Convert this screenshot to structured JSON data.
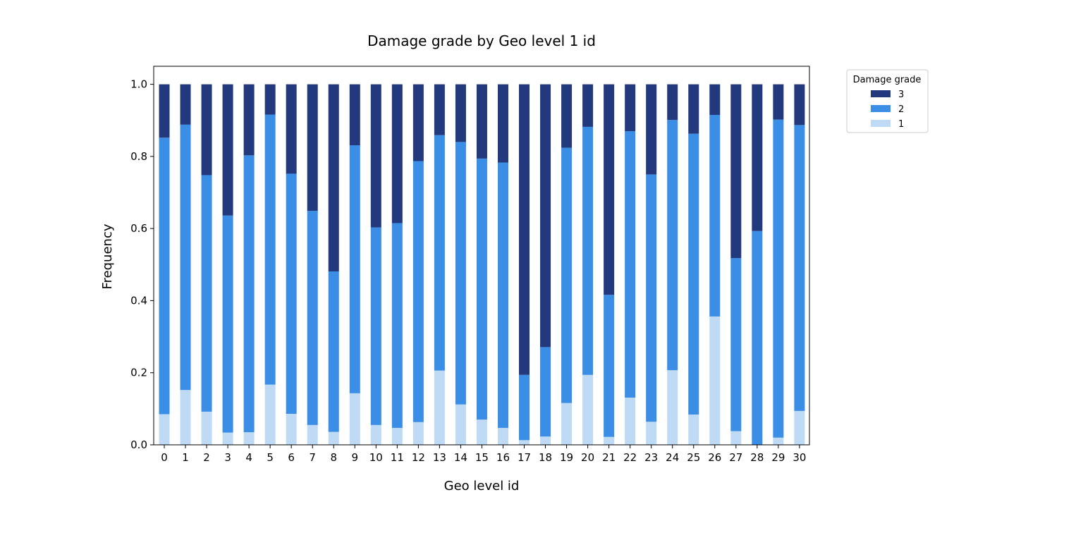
{
  "chart_data": {
    "type": "bar",
    "stacked": true,
    "title": "Damage grade by Geo level 1 id",
    "xlabel": "Geo level id",
    "ylabel": "Frequency",
    "ylim": [
      0,
      1.05
    ],
    "yticks": [
      "0.0",
      "0.2",
      "0.4",
      "0.6",
      "0.8",
      "1.0"
    ],
    "categories": [
      "0",
      "1",
      "2",
      "3",
      "4",
      "5",
      "6",
      "7",
      "8",
      "9",
      "10",
      "11",
      "12",
      "13",
      "14",
      "15",
      "16",
      "17",
      "18",
      "19",
      "20",
      "21",
      "22",
      "23",
      "24",
      "25",
      "26",
      "27",
      "28",
      "29",
      "30"
    ],
    "legend": {
      "title": "Damage grade",
      "position": "outside-top-right"
    },
    "grid": false,
    "series": [
      {
        "name": "1",
        "color": "#bfdaf5",
        "values": [
          0.085,
          0.152,
          0.092,
          0.034,
          0.035,
          0.167,
          0.086,
          0.055,
          0.036,
          0.143,
          0.055,
          0.047,
          0.063,
          0.206,
          0.112,
          0.07,
          0.047,
          0.013,
          0.023,
          0.116,
          0.194,
          0.022,
          0.131,
          0.064,
          0.207,
          0.084,
          0.356,
          0.038,
          0.0,
          0.02,
          0.094
        ]
      },
      {
        "name": "2",
        "color": "#3a8ee6",
        "values": [
          0.767,
          0.736,
          0.656,
          0.602,
          0.768,
          0.749,
          0.666,
          0.594,
          0.445,
          0.688,
          0.548,
          0.568,
          0.724,
          0.653,
          0.728,
          0.724,
          0.736,
          0.181,
          0.248,
          0.708,
          0.688,
          0.394,
          0.739,
          0.686,
          0.694,
          0.779,
          0.559,
          0.48,
          0.593,
          0.882,
          0.793
        ]
      },
      {
        "name": "3",
        "color": "#23397d",
        "values": [
          0.148,
          0.112,
          0.252,
          0.364,
          0.197,
          0.084,
          0.248,
          0.351,
          0.519,
          0.169,
          0.397,
          0.385,
          0.213,
          0.141,
          0.16,
          0.206,
          0.217,
          0.806,
          0.729,
          0.176,
          0.118,
          0.584,
          0.13,
          0.25,
          0.099,
          0.137,
          0.085,
          0.482,
          0.407,
          0.098,
          0.113
        ]
      }
    ]
  }
}
